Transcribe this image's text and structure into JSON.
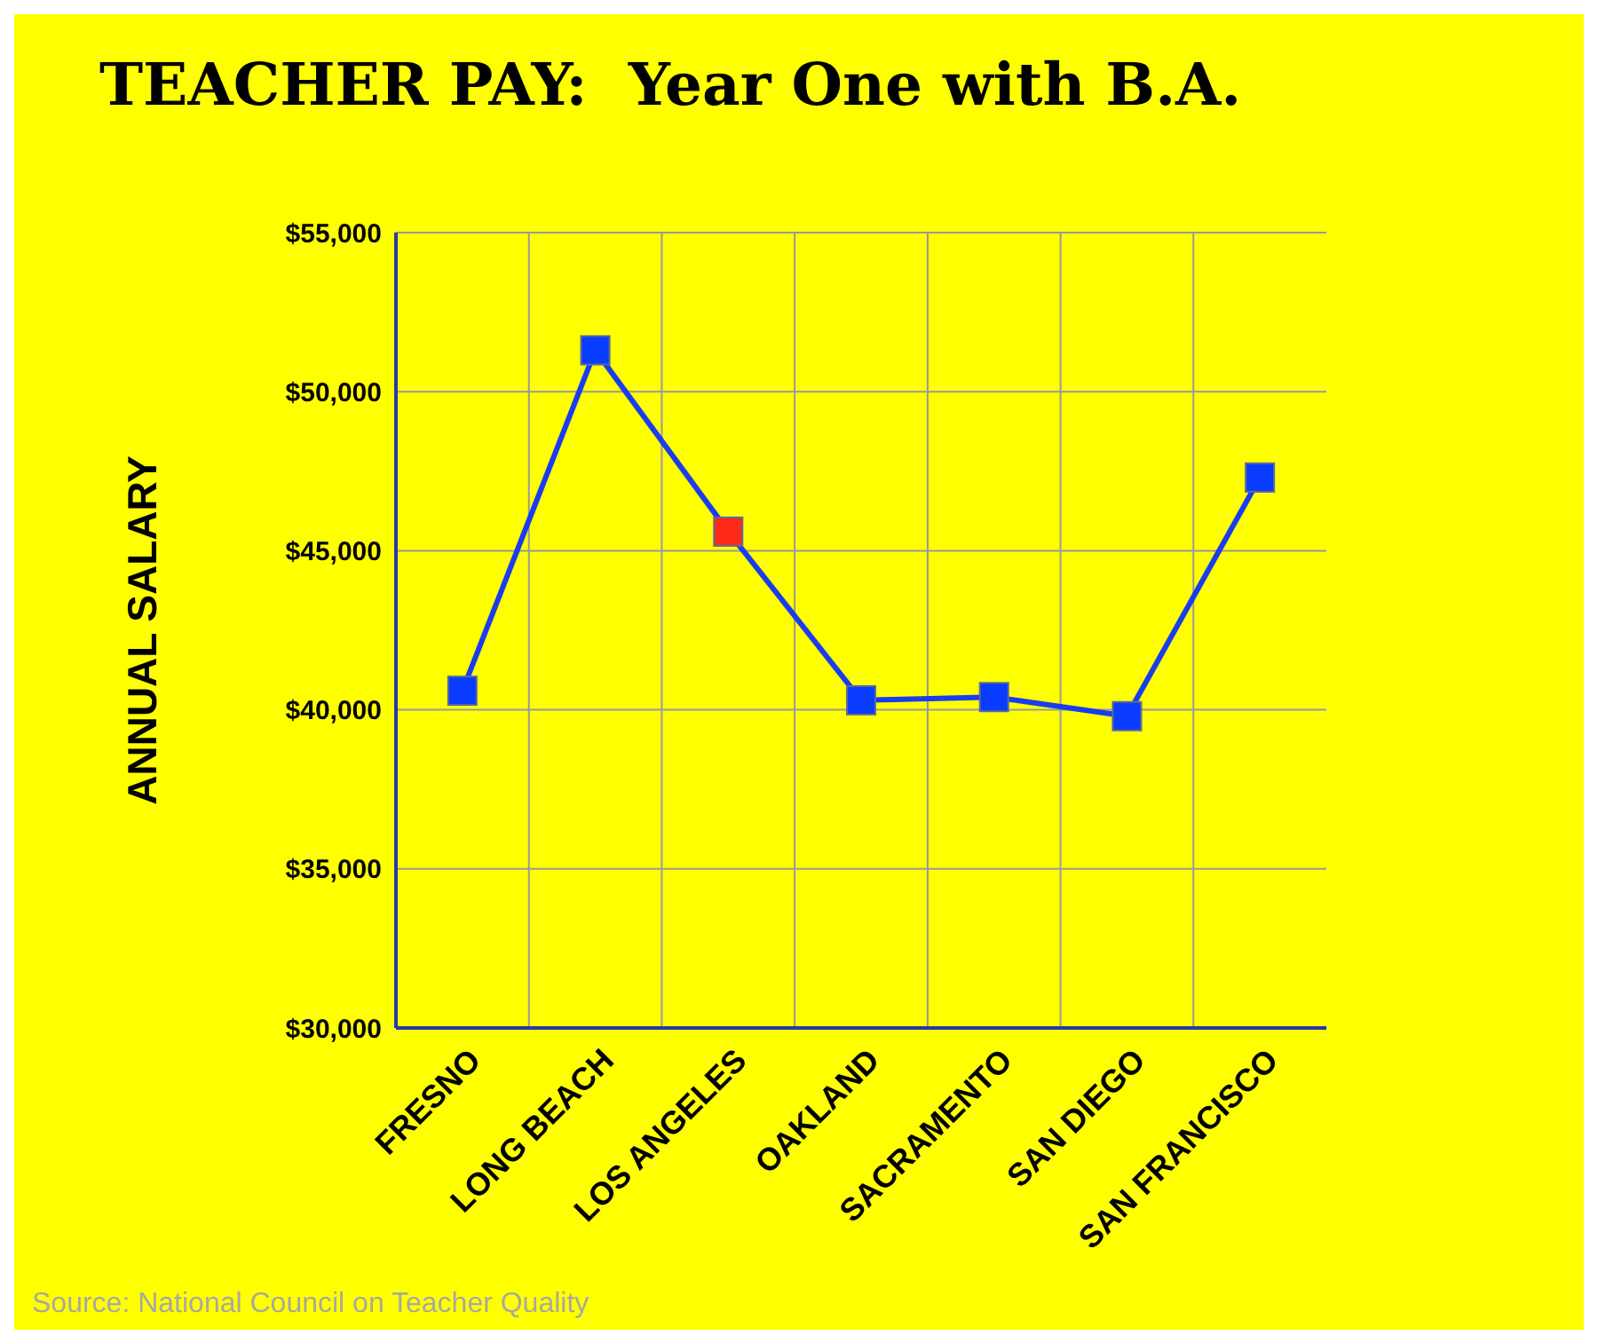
{
  "chart_data": {
    "type": "line",
    "title": "TEACHER PAY:  Year One with B.A.",
    "ylabel": "ANNUAL SALARY",
    "categories": [
      "FRESNO",
      "LONG BEACH",
      "LOS ANGELES",
      "OAKLAND",
      "SACRAMENTO",
      "SAN DIEGO",
      "SAN FRANCISCO"
    ],
    "series": [
      {
        "color": "#1a3cf0",
        "colors": [
          "#0a3cff",
          "#0a3cff",
          "#ff2a1a",
          "#0a3cff",
          "#0a3cff",
          "#0a3cff",
          "#0a3cff"
        ],
        "values": [
          40600,
          51300,
          45600,
          40300,
          40400,
          39800,
          47300
        ]
      }
    ],
    "ylim": [
      30000,
      55000
    ],
    "yticks": [
      {
        "value": 30000,
        "label": "$30,000"
      },
      {
        "value": 35000,
        "label": "$35,000"
      },
      {
        "value": 40000,
        "label": "$40,000"
      },
      {
        "value": 45000,
        "label": "$45,000"
      },
      {
        "value": 50000,
        "label": "$50,000"
      },
      {
        "value": 55000,
        "label": "$55,000"
      }
    ],
    "grid": true,
    "marker": "square",
    "line_style": "solid",
    "legend": false,
    "annotations": [
      "Source: National Council on Teacher Quality"
    ]
  }
}
